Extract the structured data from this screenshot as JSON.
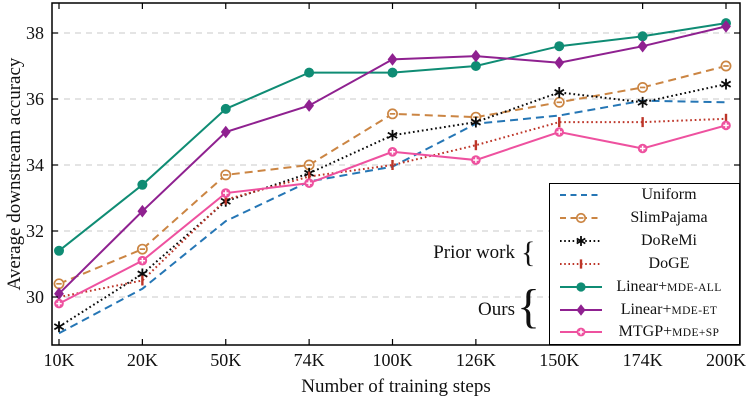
{
  "figure": {
    "x_label": "Number of training steps",
    "y_label": "Average downstream accuracy",
    "brace": "{",
    "annotations": {
      "prior_work": "Prior work",
      "ours": "Ours"
    }
  },
  "chart_data": {
    "type": "line",
    "title": "",
    "xlabel": "Number of training steps",
    "ylabel": "Average downstream accuracy",
    "categories": [
      "10K",
      "20K",
      "50K",
      "74K",
      "100K",
      "126K",
      "150K",
      "174K",
      "200K"
    ],
    "y_ticks": [
      30,
      32,
      34,
      36,
      38
    ],
    "ylim": [
      28.5,
      38.9
    ],
    "grid": "horizontal-dashed",
    "legend_position": "inside-bottom-right",
    "series": [
      {
        "name": "Uniform",
        "legend_main": "Uniform",
        "legend_caps": "",
        "group": "prior-work",
        "color": "#2576b5",
        "line": "dashed",
        "marker": "none",
        "values": [
          28.9,
          30.25,
          32.3,
          33.5,
          33.95,
          35.25,
          35.5,
          35.95,
          35.9
        ]
      },
      {
        "name": "SlimPajama",
        "legend_main": "SlimPajama",
        "legend_caps": "",
        "group": "prior-work",
        "color": "#cb8543",
        "line": "dashed",
        "marker": "circle-minus",
        "values": [
          30.4,
          31.45,
          33.7,
          34.0,
          35.55,
          35.45,
          35.9,
          36.35,
          37.0
        ]
      },
      {
        "name": "DoReMi",
        "legend_main": "DoReMi",
        "legend_caps": "",
        "group": "prior-work",
        "color": "#0a0a0a",
        "line": "dotted",
        "marker": "asterisk",
        "values": [
          29.1,
          30.7,
          32.9,
          33.75,
          34.9,
          35.3,
          36.2,
          35.9,
          36.45
        ]
      },
      {
        "name": "DoGE",
        "legend_main": "DoGE",
        "legend_caps": "",
        "group": "prior-work",
        "color": "#bd3528",
        "line": "dotted",
        "marker": "vbar",
        "values": [
          30.0,
          30.5,
          32.95,
          33.65,
          34.0,
          34.6,
          35.3,
          35.3,
          35.4
        ]
      },
      {
        "name": "Linear+MDE-ALL",
        "legend_main": "Linear+",
        "legend_caps": "MDE-ALL",
        "group": "ours",
        "color": "#0f8c74",
        "line": "solid",
        "marker": "circle",
        "values": [
          31.4,
          33.4,
          35.7,
          36.8,
          36.8,
          37.0,
          37.6,
          37.9,
          38.3
        ]
      },
      {
        "name": "Linear+MDE-ET",
        "legend_main": "Linear+",
        "legend_caps": "MDE-ET",
        "group": "ours",
        "color": "#8f2190",
        "line": "solid",
        "marker": "diamond",
        "values": [
          30.1,
          32.6,
          35.0,
          35.8,
          37.2,
          37.3,
          37.1,
          37.6,
          38.2
        ]
      },
      {
        "name": "MTGP+MDE+SP",
        "legend_main": "MTGP+",
        "legend_caps": "MDE+SP",
        "group": "ours",
        "color": "#ee519f",
        "line": "solid",
        "marker": "circle-plus",
        "values": [
          29.8,
          31.1,
          33.15,
          33.45,
          34.4,
          34.15,
          35.0,
          34.5,
          35.2
        ]
      }
    ]
  }
}
